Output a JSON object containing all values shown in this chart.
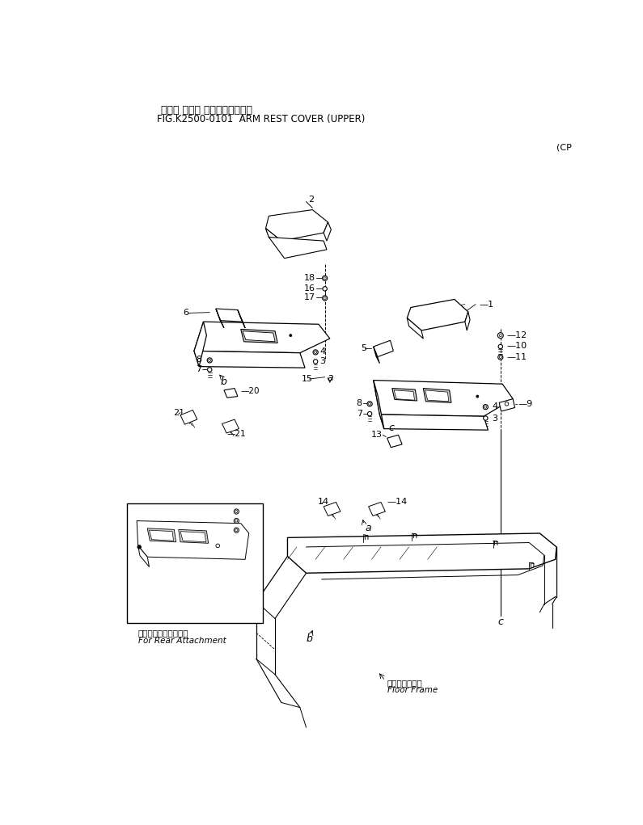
{
  "title_jp": "アーム レスト カバー（アッパ）",
  "title_en": "FIG.K2500-0101  ARM REST COVER (UPPER)",
  "cp_label": "(CP",
  "bg_color": "#ffffff",
  "line_color": "#000000",
  "text_color": "#000000",
  "inset_label_jp": "後方用アタッチメント",
  "inset_label_en": "For Rear Attachment",
  "floor_frame_jp": "フロアフレーム",
  "floor_frame_en": "Floor Frame"
}
